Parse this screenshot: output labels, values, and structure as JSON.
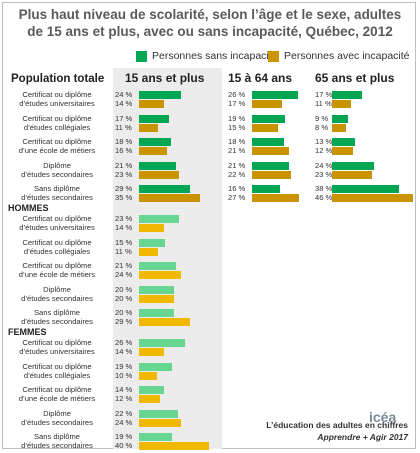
{
  "title": {
    "line1": "Plus haut niveau de scolarité, selon l’âge et le sexe, adultes",
    "line2": "de 15 ans et plus, avec ou sans incapacité, Québec, 2012"
  },
  "colors": {
    "sans": "#00a651",
    "avec": "#c99400",
    "sans_light": "#67d690",
    "avec_light": "#f0b800"
  },
  "branding": {
    "logo": "icéa",
    "line1": "L’éducation des adultes en chiffres",
    "line2": "Apprendre + Agir 2017"
  },
  "chart_data": {
    "type": "bar",
    "orientation": "horizontal",
    "legend": [
      "Personnes sans incapacité",
      "Personnes avec incapacité"
    ],
    "value_suffix": " %",
    "column_headers": [
      "15 ans et plus",
      "15 à 64 ans",
      "65 ans et plus"
    ],
    "categories": [
      "Certificat ou diplôme\nd’études universitaires",
      "Certificat ou diplôme\nd’études collégiales",
      "Certificat ou diplôme\nd’une école de métiers",
      "Diplôme\nd’études secondaires",
      "Sans diplôme\nd’études secondaires"
    ],
    "groups": [
      {
        "title": "Population totale",
        "panels": [
          {
            "column": "15 ans et plus",
            "series": [
              {
                "name": "Personnes sans incapacité",
                "values": [
                  24,
                  17,
                  18,
                  21,
                  29
                ]
              },
              {
                "name": "Personnes avec incapacité",
                "values": [
                  14,
                  11,
                  16,
                  23,
                  35
                ]
              }
            ]
          },
          {
            "column": "15 à 64 ans",
            "series": [
              {
                "name": "Personnes sans incapacité",
                "values": [
                  26,
                  19,
                  18,
                  21,
                  16
                ]
              },
              {
                "name": "Personnes avec incapacité",
                "values": [
                  17,
                  15,
                  21,
                  22,
                  27
                ]
              }
            ]
          },
          {
            "column": "65 ans et plus",
            "series": [
              {
                "name": "Personnes sans incapacité",
                "values": [
                  17,
                  9,
                  13,
                  24,
                  38
                ]
              },
              {
                "name": "Personnes avec incapacité",
                "values": [
                  11,
                  8,
                  12,
                  23,
                  46
                ]
              }
            ]
          }
        ]
      },
      {
        "title": "HOMMES",
        "panels": [
          {
            "column": "15 ans et plus",
            "series": [
              {
                "name": "Personnes sans incapacité",
                "values": [
                  23,
                  15,
                  21,
                  20,
                  20
                ]
              },
              {
                "name": "Personnes avec incapacité",
                "values": [
                  14,
                  11,
                  24,
                  20,
                  29
                ]
              }
            ]
          }
        ]
      },
      {
        "title": "FEMMES",
        "panels": [
          {
            "column": "15 ans et plus",
            "series": [
              {
                "name": "Personnes sans incapacité",
                "values": [
                  26,
                  19,
                  14,
                  22,
                  19
                ]
              },
              {
                "name": "Personnes avec incapacité",
                "values": [
                  14,
                  10,
                  12,
                  24,
                  40
                ]
              }
            ]
          }
        ]
      }
    ]
  }
}
